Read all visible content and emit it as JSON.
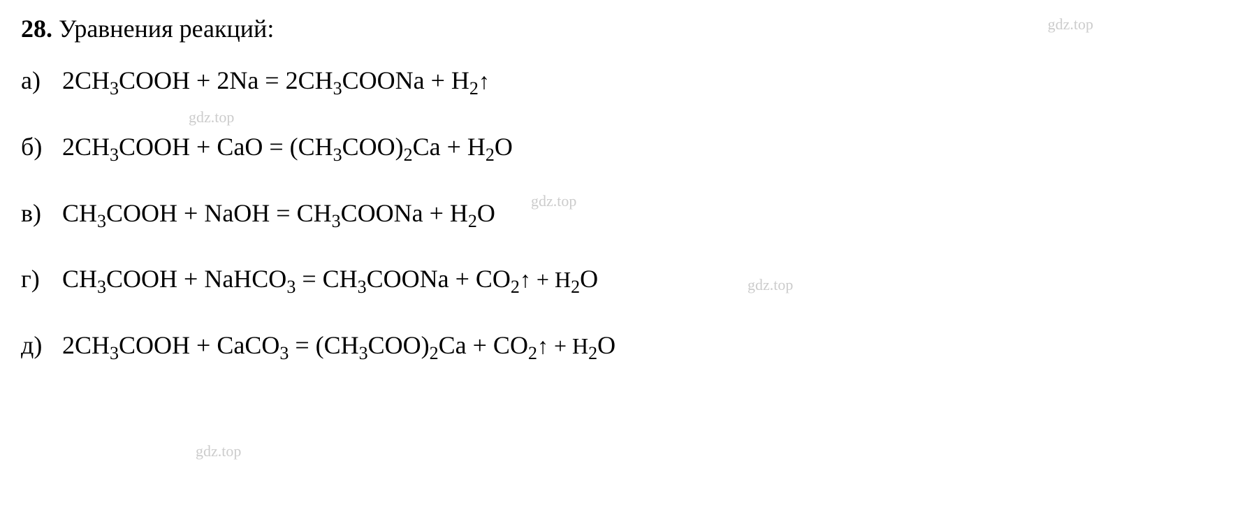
{
  "title": {
    "number": "28.",
    "text": "Уравнения реакций:"
  },
  "watermark": "gdz.top",
  "equations": [
    {
      "label": "а)",
      "formula_parts": {
        "p1": "2CH",
        "s1": "3",
        "p2": "COOH + 2Na = 2CH",
        "s2": "3",
        "p3": "COONa + H",
        "s3": "2",
        "p4": "↑"
      }
    },
    {
      "label": "б)",
      "formula_parts": {
        "p1": "2CH",
        "s1": "3",
        "p2": "COOH + CaO = (CH",
        "s2": "3",
        "p3": "COO)",
        "s3": "2",
        "p4": "Ca + H",
        "s4": "2",
        "p5": "O"
      }
    },
    {
      "label": "в)",
      "formula_parts": {
        "p1": "CH",
        "s1": "3",
        "p2": "COOH + NaOH = CH",
        "s2": "3",
        "p3": "COONa + H",
        "s3": "2",
        "p4": "O"
      }
    },
    {
      "label": "г)",
      "formula_parts": {
        "p1": "CH",
        "s1": "3",
        "p2": "COOH + NaHCO",
        "s2": "3",
        "p3": " = CH",
        "s3": "3",
        "p4": "COONa + CO",
        "s4": "2",
        "p5": "↑ + H",
        "s5": "2",
        "p6": "O"
      }
    },
    {
      "label": "д)",
      "formula_parts": {
        "p1": "2CH",
        "s1": "3",
        "p2": "COOH + CaCO",
        "s2": "3",
        "p3": " = (CH",
        "s3": "3",
        "p4": "COO)",
        "s4": "2",
        "p5": "Ca + CO",
        "s5": "2",
        "p6": "↑ + H",
        "s6": "2",
        "p7": "O"
      }
    }
  ],
  "colors": {
    "text": "#000000",
    "watermark": "#cccccc",
    "background": "#ffffff"
  },
  "typography": {
    "title_fontsize": 36,
    "equation_fontsize": 36,
    "subscript_fontsize": 26,
    "watermark_fontsize": 22,
    "font_family": "Georgia, Times New Roman, serif"
  }
}
